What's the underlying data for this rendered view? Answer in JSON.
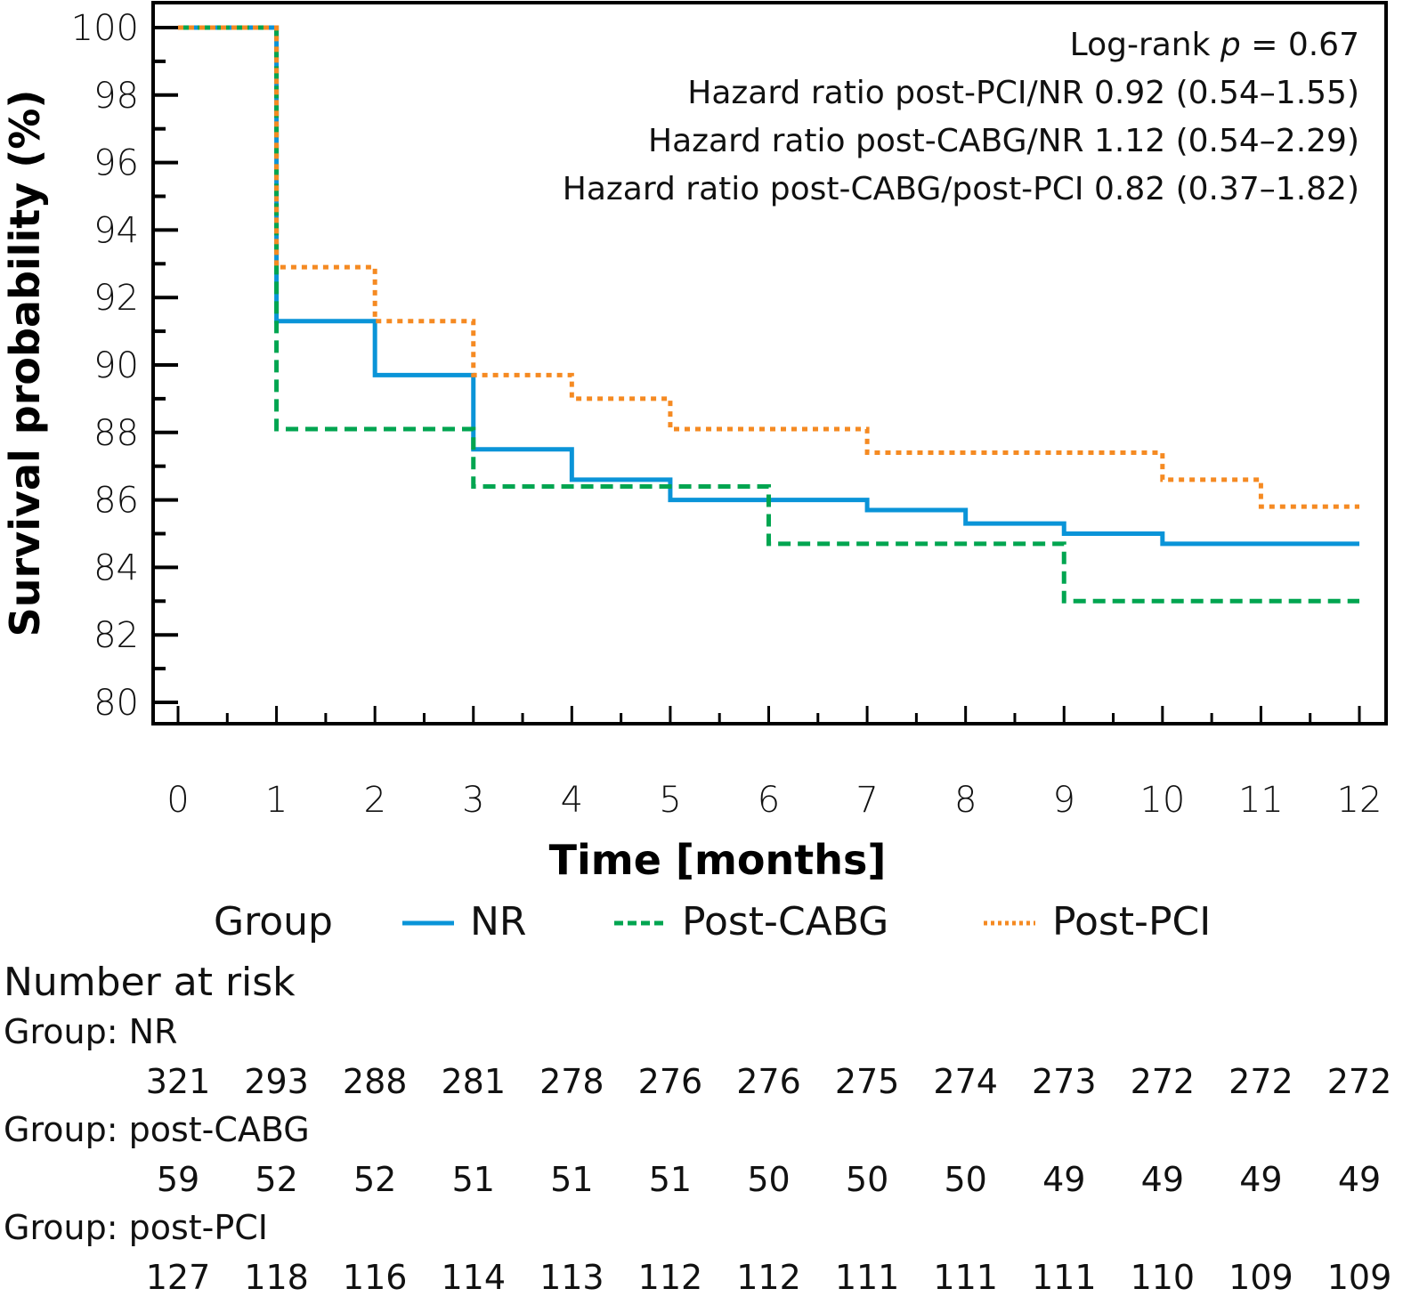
{
  "chart_data": {
    "type": "line",
    "subtype": "kaplan-meier-step",
    "title": "",
    "xlabel": "Time [months]",
    "ylabel": "Survival probability (%)",
    "xlim": [
      0,
      12
    ],
    "ylim": [
      80,
      100
    ],
    "x_ticks": [
      "0",
      "1",
      "2",
      "3",
      "4",
      "5",
      "6",
      "7",
      "8",
      "9",
      "10",
      "11",
      "12"
    ],
    "y_ticks": [
      "80",
      "82",
      "84",
      "86",
      "88",
      "90",
      "92",
      "94",
      "96",
      "98",
      "100"
    ],
    "grid": false,
    "annotations": [
      {
        "prefix": "Log-rank ",
        "italic": "p",
        "suffix": " = 0.67"
      },
      {
        "text": "Hazard ratio post-PCI/NR 0.92 (0.54–1.55)"
      },
      {
        "text": "Hazard ratio post-CABG/NR 1.12 (0.54–2.29)"
      },
      {
        "text": "Hazard ratio post-CABG/post-PCI 0.82 (0.37–1.82)"
      }
    ],
    "legend": {
      "title": "Group",
      "placement": "bottom",
      "entries": [
        "NR",
        "Post-CABG",
        "Post-PCI"
      ]
    },
    "series": [
      {
        "name": "NR",
        "color": "#0a94d8",
        "style": "solid",
        "steps": [
          [
            0,
            100
          ],
          [
            1,
            91.3
          ],
          [
            2,
            89.7
          ],
          [
            3,
            87.5
          ],
          [
            4,
            86.6
          ],
          [
            5,
            86.0
          ],
          [
            7,
            85.7
          ],
          [
            8,
            85.3
          ],
          [
            9,
            85.0
          ],
          [
            10,
            84.7
          ],
          [
            12,
            84.7
          ]
        ]
      },
      {
        "name": "Post-CABG",
        "color": "#00a550",
        "style": "dashed",
        "steps": [
          [
            0,
            100
          ],
          [
            1,
            88.1
          ],
          [
            3,
            86.4
          ],
          [
            6,
            84.7
          ],
          [
            9,
            83.0
          ],
          [
            12,
            83.0
          ]
        ]
      },
      {
        "name": "Post-PCI",
        "color": "#f58a22",
        "style": "dotted",
        "steps": [
          [
            0,
            100
          ],
          [
            1,
            92.9
          ],
          [
            2,
            91.3
          ],
          [
            3,
            89.7
          ],
          [
            4,
            89.0
          ],
          [
            5,
            88.1
          ],
          [
            7,
            87.4
          ],
          [
            10,
            86.6
          ],
          [
            11,
            85.8
          ],
          [
            12,
            85.8
          ]
        ]
      }
    ],
    "number_at_risk": {
      "title": "Number at risk",
      "groups": [
        {
          "label": "Group: NR",
          "values": [
            "321",
            "293",
            "288",
            "281",
            "278",
            "276",
            "276",
            "275",
            "274",
            "273",
            "272",
            "272",
            "272"
          ]
        },
        {
          "label": "Group: post-CABG",
          "values": [
            "59",
            "52",
            "52",
            "51",
            "51",
            "51",
            "50",
            "50",
            "50",
            "49",
            "49",
            "49",
            "49"
          ]
        },
        {
          "label": "Group: post-PCI",
          "values": [
            "127",
            "118",
            "116",
            "114",
            "113",
            "112",
            "112",
            "111",
            "111",
            "111",
            "110",
            "109",
            "109"
          ]
        }
      ]
    }
  }
}
